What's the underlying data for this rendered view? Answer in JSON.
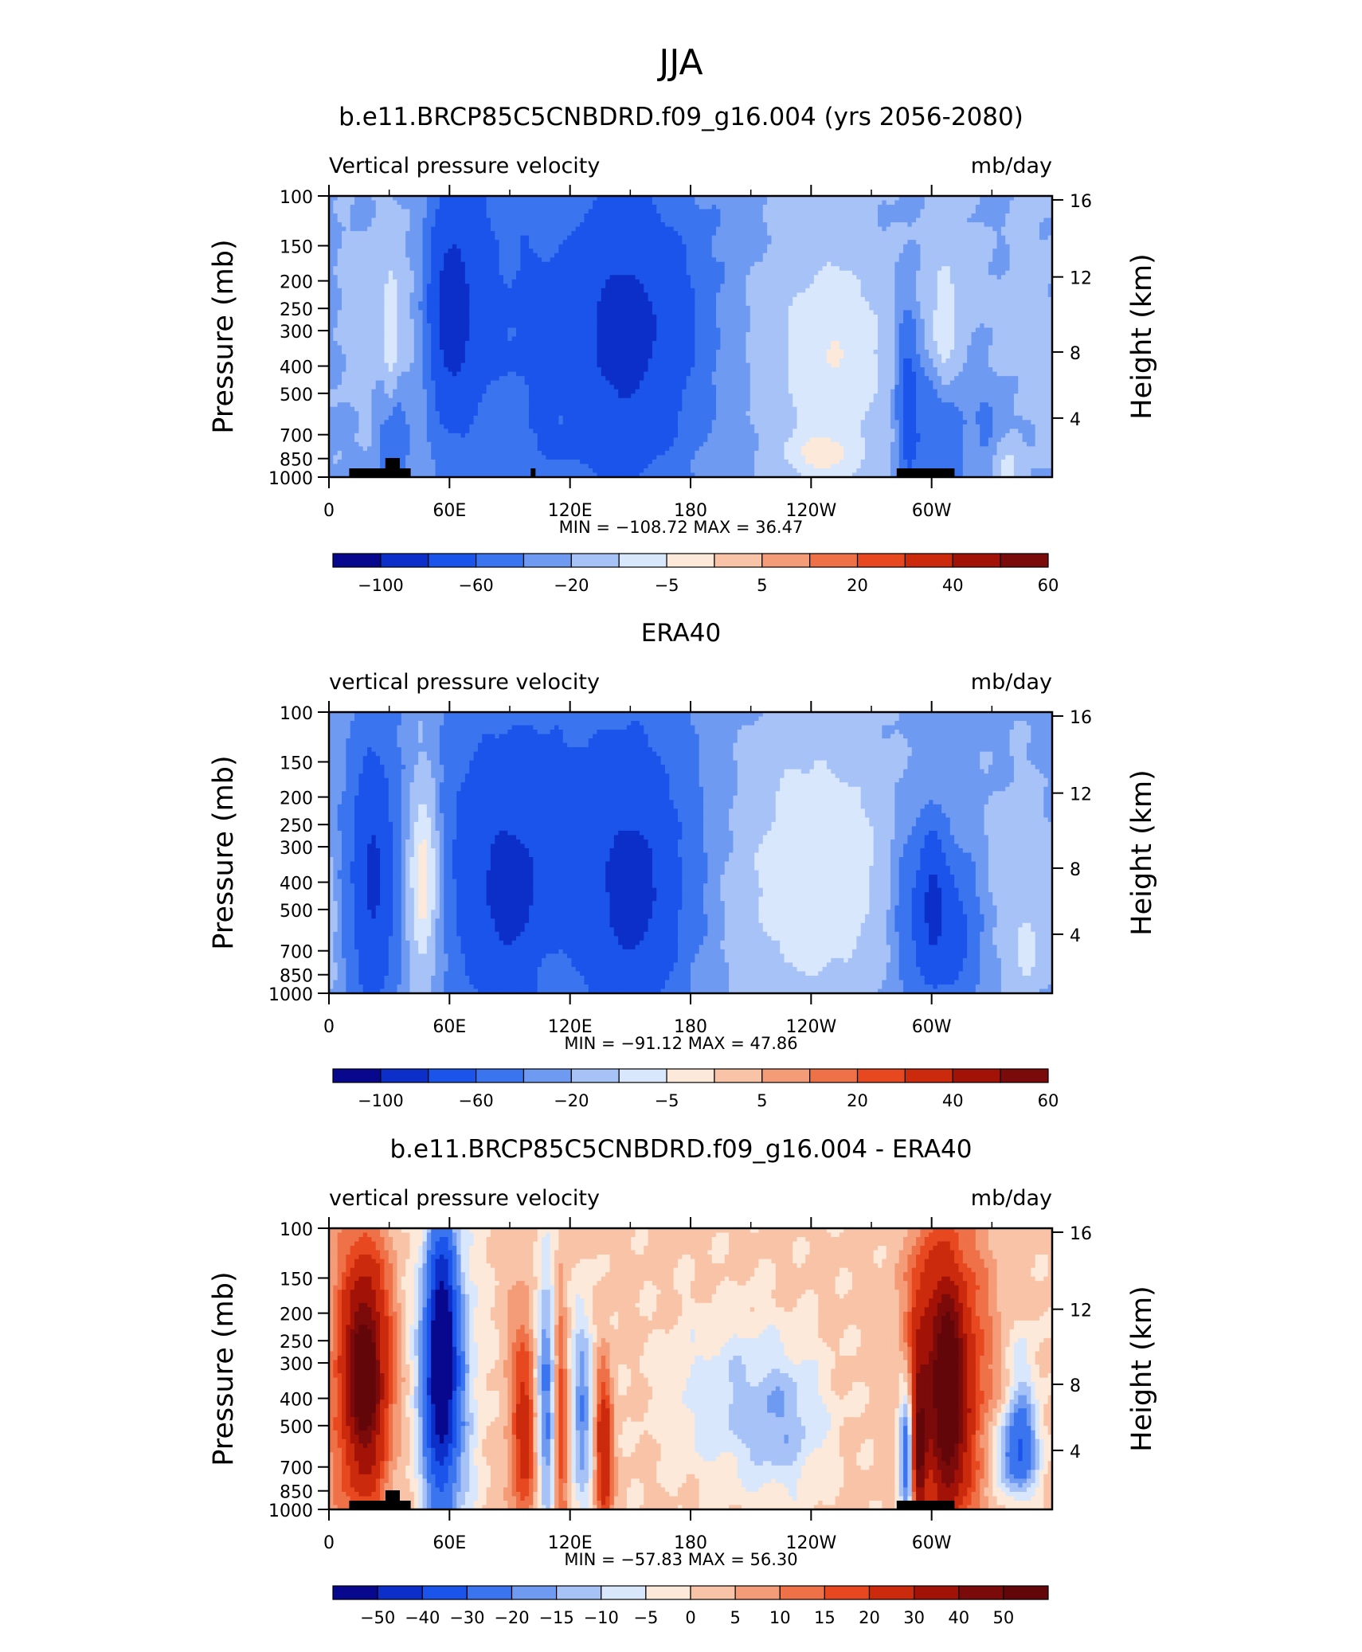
{
  "figure_title": "JJA",
  "chart_data": [
    {
      "type": "heatmap",
      "title": "b.e11.BRCP85C5CNBDRD.f09_g16.004 (yrs 2056-2080)",
      "left_label": "Vertical pressure velocity",
      "right_label": "mb/day",
      "ylabel": "Pressure (mb)",
      "ylabel_right": "Height (km)",
      "y_ticks": [
        "100",
        "150",
        "200",
        "250",
        "300",
        "400",
        "500",
        "700",
        "850",
        "1000"
      ],
      "y_ticks_right": [
        "16",
        "12",
        "8",
        "4"
      ],
      "x_ticks": [
        "0",
        "60E",
        "120E",
        "180",
        "120W",
        "60W"
      ],
      "stats": "MIN = −108.72   MAX =   36.47",
      "min": -108.72,
      "max": 36.47,
      "colorbar_labels": [
        "−100",
        "−60",
        "−20",
        "−5",
        "5",
        "20",
        "40",
        "60"
      ],
      "colorbar_colors": [
        "#08088f",
        "#0d2fc9",
        "#1a54ea",
        "#3b74ef",
        "#6f9af2",
        "#a7c2f6",
        "#d8e7fb",
        "#fde9d9",
        "#f8c3a6",
        "#f49b77",
        "#ef7148",
        "#e8481f",
        "#cc2a0c",
        "#a31206",
        "#7b0a0a"
      ],
      "topography": true
    },
    {
      "type": "heatmap",
      "title": "ERA40",
      "left_label": "vertical pressure velocity",
      "right_label": "mb/day",
      "ylabel": "Pressure (mb)",
      "ylabel_right": "Height (km)",
      "y_ticks": [
        "100",
        "150",
        "200",
        "250",
        "300",
        "400",
        "500",
        "700",
        "850",
        "1000"
      ],
      "y_ticks_right": [
        "16",
        "12",
        "8",
        "4"
      ],
      "x_ticks": [
        "0",
        "60E",
        "120E",
        "180",
        "120W",
        "60W"
      ],
      "stats": "MIN = −91.12   MAX =   47.86",
      "min": -91.12,
      "max": 47.86,
      "colorbar_labels": [
        "−100",
        "−60",
        "−20",
        "−5",
        "5",
        "20",
        "40",
        "60"
      ],
      "colorbar_colors": [
        "#08088f",
        "#0d2fc9",
        "#1a54ea",
        "#3b74ef",
        "#6f9af2",
        "#a7c2f6",
        "#d8e7fb",
        "#fde9d9",
        "#f8c3a6",
        "#f49b77",
        "#ef7148",
        "#e8481f",
        "#cc2a0c",
        "#a31206",
        "#7b0a0a"
      ],
      "topography": false
    },
    {
      "type": "heatmap",
      "title": "b.e11.BRCP85C5CNBDRD.f09_g16.004 - ERA40",
      "left_label": "vertical pressure velocity",
      "right_label": "mb/day",
      "ylabel": "Pressure (mb)",
      "ylabel_right": "Height (km)",
      "y_ticks": [
        "100",
        "150",
        "200",
        "250",
        "300",
        "400",
        "500",
        "700",
        "850",
        "1000"
      ],
      "y_ticks_right": [
        "16",
        "12",
        "8",
        "4"
      ],
      "x_ticks": [
        "0",
        "60E",
        "120E",
        "180",
        "120W",
        "60W"
      ],
      "stats": "MIN = −57.83   MAX =   56.30",
      "min": -57.83,
      "max": 56.3,
      "colorbar_labels": [
        "−50",
        "−40",
        "−30",
        "−20",
        "−15",
        "−10",
        "−5",
        "0",
        "5",
        "10",
        "15",
        "20",
        "30",
        "40",
        "50"
      ],
      "colorbar_colors": [
        "#08088f",
        "#0d2fc9",
        "#1a54ea",
        "#3b74ef",
        "#6f9af2",
        "#a7c2f6",
        "#d8e7fb",
        "#fde9d9",
        "#f8c3a6",
        "#f49b77",
        "#ef7148",
        "#e8481f",
        "#cc2a0c",
        "#a31206",
        "#7b0a0a",
        "#62060a"
      ],
      "topography": true
    }
  ]
}
